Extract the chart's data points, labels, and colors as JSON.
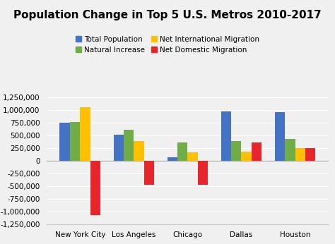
{
  "title": "Population Change in Top 5 U.S. Metros 2010-2017",
  "categories": [
    "New York City",
    "Los Angeles",
    "Chicago",
    "Dallas",
    "Houston"
  ],
  "series": [
    {
      "label": "Total Population",
      "color": "#4472C4",
      "values": [
        750000,
        525000,
        80000,
        980000,
        970000
      ]
    },
    {
      "label": "Natural Increase",
      "color": "#70AD47",
      "values": [
        775000,
        615000,
        360000,
        400000,
        430000
      ]
    },
    {
      "label": "Net International Migration",
      "color": "#FFC000",
      "values": [
        1060000,
        390000,
        175000,
        185000,
        255000
      ]
    },
    {
      "label": "Net Domestic Migration",
      "color": "#E6262B",
      "values": [
        -1060000,
        -470000,
        -470000,
        360000,
        260000
      ]
    }
  ],
  "ylim": [
    -1250000,
    1250000
  ],
  "yticks": [
    -1250000,
    -1000000,
    -750000,
    -500000,
    -250000,
    0,
    250000,
    500000,
    750000,
    1000000,
    1250000
  ],
  "legend_ncol": 2,
  "background_color": "#f0f0f0",
  "grid_color": "#ffffff",
  "title_fontsize": 11,
  "tick_fontsize": 7.5,
  "legend_fontsize": 7.5
}
